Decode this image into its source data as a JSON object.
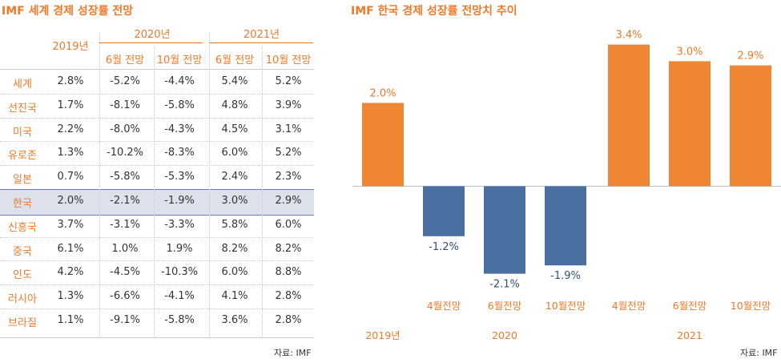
{
  "left": {
    "title": "IMF 세계 경제 성장률 전망",
    "header": {
      "year2019": "2019년",
      "year2020": "2020년",
      "year2021": "2021년",
      "sub": [
        "6월 전망",
        "10월 전망",
        "6월 전망",
        "10월 전망"
      ]
    },
    "rows": [
      {
        "label": "세계",
        "v": [
          "2.8%",
          "-5.2%",
          "-4.4%",
          "5.4%",
          "5.2%"
        ]
      },
      {
        "label": "선진국",
        "v": [
          "1.7%",
          "-8.1%",
          "-5.8%",
          "4.8%",
          "3.9%"
        ]
      },
      {
        "label": "미국",
        "v": [
          "2.2%",
          "-8.0%",
          "-4.3%",
          "4.5%",
          "3.1%"
        ]
      },
      {
        "label": "유로존",
        "v": [
          "1.3%",
          "-10.2%",
          "-8.3%",
          "6.0%",
          "5.2%"
        ]
      },
      {
        "label": "일본",
        "v": [
          "0.7%",
          "-5.8%",
          "-5.3%",
          "2.4%",
          "2.3%"
        ]
      },
      {
        "label": "한국",
        "v": [
          "2.0%",
          "-2.1%",
          "-1.9%",
          "3.0%",
          "2.9%"
        ]
      },
      {
        "label": "신흥국",
        "v": [
          "3.7%",
          "-3.1%",
          "-3.3%",
          "5.8%",
          "6.0%"
        ]
      },
      {
        "label": "중국",
        "v": [
          "6.1%",
          "1.0%",
          "1.9%",
          "8.2%",
          "8.2%"
        ]
      },
      {
        "label": "인도",
        "v": [
          "4.2%",
          "-4.5%",
          "-10.3%",
          "6.0%",
          "8.8%"
        ]
      },
      {
        "label": "러시아",
        "v": [
          "1.3%",
          "-6.6%",
          "-4.1%",
          "4.1%",
          "2.8%"
        ]
      },
      {
        "label": "브라질",
        "v": [
          "1.1%",
          "-9.1%",
          "-5.8%",
          "3.6%",
          "2.8%"
        ]
      }
    ],
    "source": "자료: IMF"
  },
  "right": {
    "title": "IMF 한국 경제 성장률 전망치 추이",
    "source": "자료: IMF"
  },
  "colors": {
    "positive": "#ef8634",
    "negative": "#4a6fa1",
    "accent_text": "#ef7a2a",
    "highlight_row": "#dde1ec"
  },
  "chart_data": {
    "type": "bar",
    "title": "IMF 한국 경제 성장률 전망치 추이",
    "categories": [
      "",
      "4월전망",
      "6월전망",
      "10월전망",
      "4월전망",
      "6월전망",
      "10월전망"
    ],
    "groups": [
      {
        "label": "2019년",
        "span": [
          0,
          0
        ]
      },
      {
        "label": "2020",
        "span": [
          1,
          3
        ]
      },
      {
        "label": "2021",
        "span": [
          4,
          6
        ]
      }
    ],
    "values": [
      2.0,
      -1.2,
      -2.1,
      -1.9,
      3.4,
      3.0,
      2.9
    ],
    "value_labels": [
      "2.0%",
      "-1.2%",
      "-2.1%",
      "-1.9%",
      "3.4%",
      "3.0%",
      "2.9%"
    ],
    "ylim": [
      -2.3,
      3.7
    ],
    "grid": false,
    "legend": "none"
  }
}
